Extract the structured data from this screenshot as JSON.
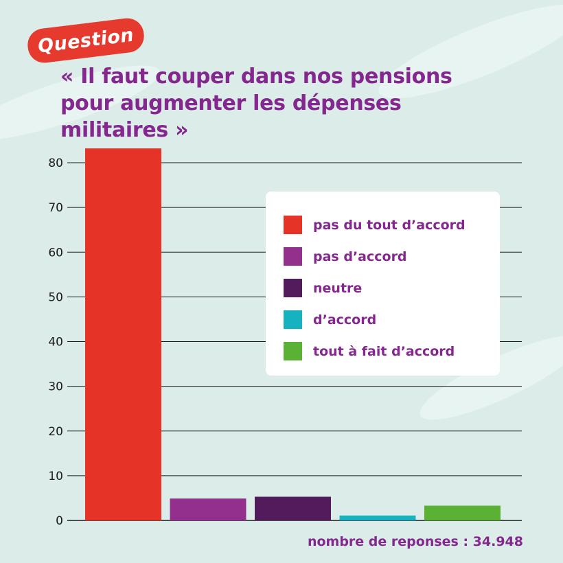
{
  "badge": {
    "label": "Question"
  },
  "title": {
    "lines": [
      "« Il faut couper dans nos pensions",
      "pour augmenter les dépenses",
      "militaires »"
    ]
  },
  "chart_data": {
    "type": "bar",
    "title": "« Il faut couper dans nos pensions pour augmenter les dépenses militaires »",
    "categories": [
      "pas du tout d’accord",
      "pas d’accord",
      "neutre",
      "d’accord",
      "tout à fait d’accord"
    ],
    "values": [
      83.2,
      4.9,
      5.3,
      1.1,
      3.3
    ],
    "colors": [
      "#e63328",
      "#93308d",
      "#521c5c",
      "#16b2bf",
      "#5ab133"
    ],
    "ylim": [
      0,
      80
    ],
    "yticks": [
      0,
      10,
      20,
      30,
      40,
      50,
      60,
      70,
      80
    ],
    "ytick_labels": [
      "0",
      "10",
      "20",
      "30",
      "40",
      "50",
      "60",
      "70",
      "80"
    ],
    "xlabel": "",
    "ylabel": "",
    "grid": true,
    "legend_position": "top-right"
  },
  "footer": {
    "text": "nombre de reponses : 34.948"
  },
  "colors": {
    "accent": "#84278f",
    "badge": "#e63a2e",
    "background": "#dcede9"
  }
}
